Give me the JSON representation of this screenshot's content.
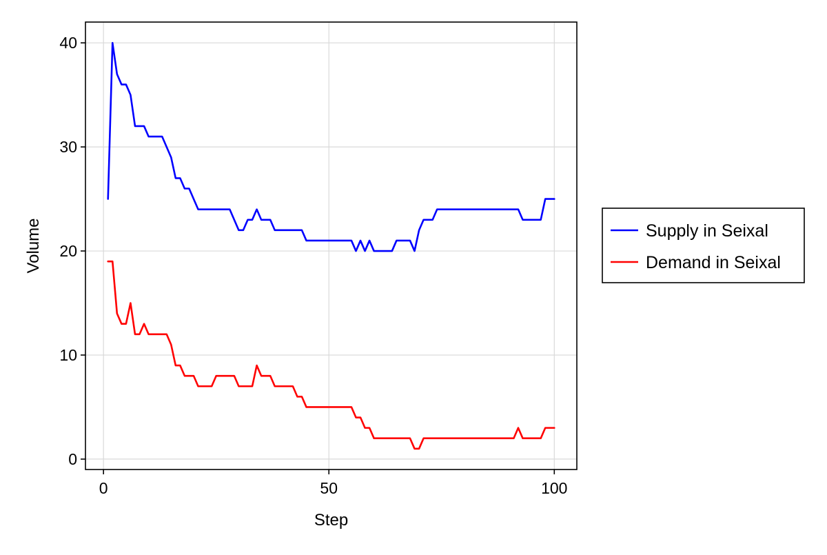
{
  "chart_data": {
    "type": "line",
    "title": "",
    "xlabel": "Step",
    "ylabel": "Volume",
    "xlim": [
      -4,
      105
    ],
    "ylim": [
      -1,
      42
    ],
    "xticks": [
      0,
      50,
      100
    ],
    "yticks": [
      0,
      10,
      20,
      30,
      40
    ],
    "xtick_labels": [
      "0",
      "50",
      "100"
    ],
    "ytick_labels": [
      "0",
      "10",
      "20",
      "30",
      "40"
    ],
    "grid": true,
    "legend": "outside-right",
    "x": [
      1,
      2,
      3,
      4,
      5,
      6,
      7,
      8,
      9,
      10,
      11,
      12,
      13,
      14,
      15,
      16,
      17,
      18,
      19,
      20,
      21,
      22,
      23,
      24,
      25,
      26,
      27,
      28,
      29,
      30,
      31,
      32,
      33,
      34,
      35,
      36,
      37,
      38,
      39,
      40,
      41,
      42,
      43,
      44,
      45,
      46,
      47,
      48,
      49,
      50,
      51,
      52,
      53,
      54,
      55,
      56,
      57,
      58,
      59,
      60,
      61,
      62,
      63,
      64,
      65,
      66,
      67,
      68,
      69,
      70,
      71,
      72,
      73,
      74,
      75,
      76,
      77,
      78,
      79,
      80,
      81,
      82,
      83,
      84,
      85,
      86,
      87,
      88,
      89,
      90,
      91,
      92,
      93,
      94,
      95,
      96,
      97,
      98,
      99,
      100
    ],
    "series": [
      {
        "name": "Supply in Seixal",
        "color": "#0000ff",
        "values": [
          25,
          40,
          37,
          36,
          36,
          35,
          32,
          32,
          32,
          31,
          31,
          31,
          31,
          30,
          29,
          27,
          27,
          26,
          26,
          25,
          24,
          24,
          24,
          24,
          24,
          24,
          24,
          24,
          23,
          22,
          22,
          23,
          23,
          24,
          23,
          23,
          23,
          22,
          22,
          22,
          22,
          22,
          22,
          22,
          21,
          21,
          21,
          21,
          21,
          21,
          21,
          21,
          21,
          21,
          21,
          20,
          21,
          20,
          21,
          20,
          20,
          20,
          20,
          20,
          21,
          21,
          21,
          21,
          20,
          22,
          23,
          23,
          23,
          24,
          24,
          24,
          24,
          24,
          24,
          24,
          24,
          24,
          24,
          24,
          24,
          24,
          24,
          24,
          24,
          24,
          24,
          24,
          23,
          23,
          23,
          23,
          23,
          25,
          25,
          25
        ]
      },
      {
        "name": "Demand in Seixal",
        "color": "#ff0000",
        "values": [
          19,
          19,
          14,
          13,
          13,
          15,
          12,
          12,
          13,
          12,
          12,
          12,
          12,
          12,
          11,
          9,
          9,
          8,
          8,
          8,
          7,
          7,
          7,
          7,
          8,
          8,
          8,
          8,
          8,
          7,
          7,
          7,
          7,
          9,
          8,
          8,
          8,
          7,
          7,
          7,
          7,
          7,
          6,
          6,
          5,
          5,
          5,
          5,
          5,
          5,
          5,
          5,
          5,
          5,
          5,
          4,
          4,
          3,
          3,
          2,
          2,
          2,
          2,
          2,
          2,
          2,
          2,
          2,
          1,
          1,
          2,
          2,
          2,
          2,
          2,
          2,
          2,
          2,
          2,
          2,
          2,
          2,
          2,
          2,
          2,
          2,
          2,
          2,
          2,
          2,
          2,
          3,
          2,
          2,
          2,
          2,
          2,
          3,
          3,
          3
        ]
      }
    ]
  }
}
